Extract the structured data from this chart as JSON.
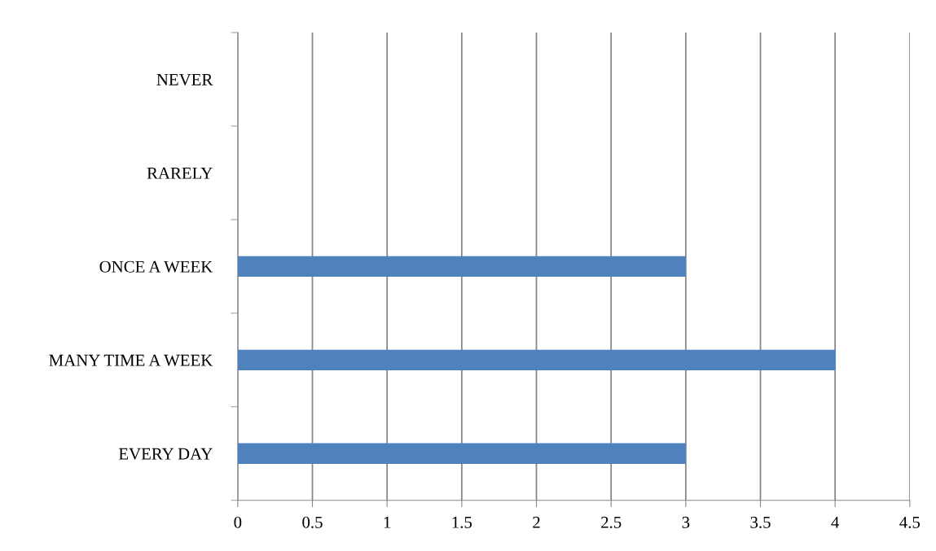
{
  "chart_data": {
    "type": "bar",
    "orientation": "horizontal",
    "categories": [
      "NEVER",
      "RARELY",
      "ONCE A WEEK",
      "MANY TIME A WEEK",
      "EVERY DAY"
    ],
    "values": [
      0,
      0,
      3,
      4,
      3
    ],
    "color": "#4f81bd",
    "xlim": [
      0,
      4.5
    ],
    "xticks": [
      0,
      0.5,
      1,
      1.5,
      2,
      2.5,
      3,
      3.5,
      4,
      4.5
    ],
    "grid": "x",
    "legend": false
  }
}
